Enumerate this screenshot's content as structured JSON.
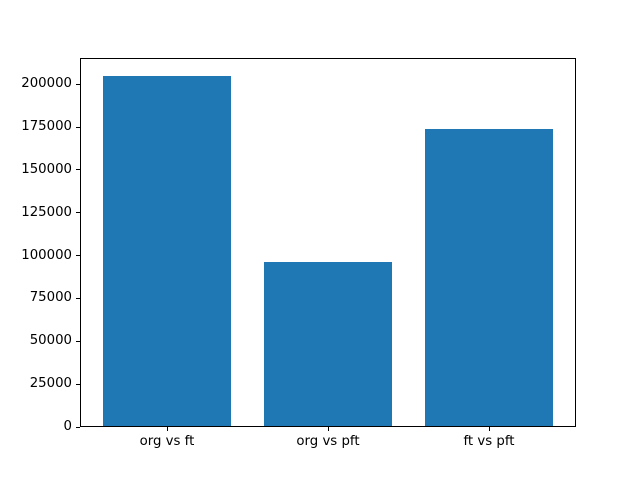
{
  "figure": {
    "background": "#ffffff",
    "spine_color": "#000000",
    "tick_color": "#000000"
  },
  "chart_data": {
    "type": "bar",
    "title": "",
    "xlabel": "",
    "ylabel": "",
    "categories": [
      "org vs ft",
      "org vs pft",
      "ft vs pft"
    ],
    "values": [
      205000,
      96000,
      174000
    ],
    "bar_color": "#1f77b4",
    "ylim": [
      0,
      215250
    ],
    "yticks": [
      0,
      25000,
      50000,
      75000,
      100000,
      125000,
      150000,
      175000,
      200000
    ],
    "grid": false,
    "legend": null
  }
}
